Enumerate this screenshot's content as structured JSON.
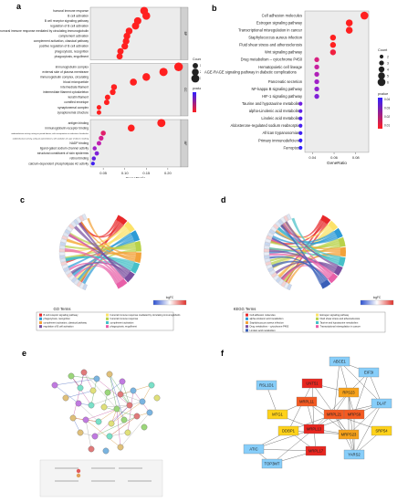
{
  "figure": {
    "panel_letters": {
      "a": "a",
      "b": "b",
      "c": "c",
      "d": "d",
      "e": "e",
      "f": "f"
    }
  },
  "chart_data": [
    {
      "panel": "a",
      "type": "scatter",
      "xlabel": "GeneRatio",
      "xticks": [
        "0.05",
        "0.10",
        "0.15",
        "0.20"
      ],
      "xlim": [
        0.02,
        0.23
      ],
      "legend": {
        "count_title": "Count",
        "count_values": [
          10,
          20,
          30
        ],
        "p_title": "pvalue"
      },
      "groups": [
        {
          "name": "BP",
          "terms": [
            {
              "label": "humoral immune response",
              "x": 0.145,
              "count": 28,
              "color": "#ff2020"
            },
            {
              "label": "B cell activation",
              "x": 0.15,
              "count": 28,
              "color": "#ff2020"
            },
            {
              "label": "B cell receptor signaling pathway",
              "x": 0.13,
              "count": 24,
              "color": "#ff2020"
            },
            {
              "label": "regulation of B cell activation",
              "x": 0.125,
              "count": 23,
              "color": "#ff2020"
            },
            {
              "label": "humoral immune response mediated by circulating immunoglobulin",
              "x": 0.11,
              "count": 20,
              "color": "#ff2020"
            },
            {
              "label": "complement activation",
              "x": 0.105,
              "count": 19,
              "color": "#ff2020"
            },
            {
              "label": "complement activation, classical pathway",
              "x": 0.103,
              "count": 18,
              "color": "#ff2020"
            },
            {
              "label": "positive regulation of B cell activation",
              "x": 0.1,
              "count": 18,
              "color": "#ff2020"
            },
            {
              "label": "phagocytosis, recognition",
              "x": 0.09,
              "count": 16,
              "color": "#ff2020"
            },
            {
              "label": "phagocytosis, engulfment",
              "x": 0.088,
              "count": 15,
              "color": "#ff2020"
            }
          ]
        },
        {
          "name": "CC",
          "terms": [
            {
              "label": "immunoglobulin complex",
              "x": 0.225,
              "count": 36,
              "color": "#ff2020"
            },
            {
              "label": "external side of plasma membrane",
              "x": 0.19,
              "count": 32,
              "color": "#ff2020"
            },
            {
              "label": "immunoglobulin complex, circulating",
              "x": 0.15,
              "count": 27,
              "color": "#ff2020"
            },
            {
              "label": "blood microparticle",
              "x": 0.12,
              "count": 21,
              "color": "#ff2020"
            },
            {
              "label": "intermediate filament",
              "x": 0.075,
              "count": 13,
              "color": "#ff2020"
            },
            {
              "label": "intermediate filament cytoskeleton",
              "x": 0.072,
              "count": 12,
              "color": "#ff2020"
            },
            {
              "label": "keratin filament",
              "x": 0.06,
              "count": 10,
              "color": "#ff2020"
            },
            {
              "label": "cornified envelope",
              "x": 0.058,
              "count": 10,
              "color": "#ff2020"
            },
            {
              "label": "synaptonemal complex",
              "x": 0.04,
              "count": 6,
              "color": "#ff2020"
            },
            {
              "label": "synaptonemal structure",
              "x": 0.04,
              "count": 6,
              "color": "#ff2020"
            }
          ]
        },
        {
          "name": "MF",
          "terms": [
            {
              "label": "antigen binding",
              "x": 0.185,
              "count": 31,
              "color": "#ff2020"
            },
            {
              "label": "immunoglobulin receptor binding",
              "x": 0.115,
              "count": 20,
              "color": "#ff2020"
            },
            {
              "label": "oxidoreductase activity, acting on paired donors, with incorporation or reduction of molecular oxygen",
              "x": 0.05,
              "count": 8,
              "color": "#e0206a"
            },
            {
              "label": "oxidoreductase activity, acting on paired donors, with oxidation of a pair of donors resulting in the reduction of molecular oxygen to two molecules of water",
              "x": 0.045,
              "count": 7,
              "color": "#d42090"
            },
            {
              "label": "NADP binding",
              "x": 0.04,
              "count": 6,
              "color": "#c020b0"
            },
            {
              "label": "ligand-gated sodium channel activity",
              "x": 0.03,
              "count": 4,
              "color": "#a020c8"
            },
            {
              "label": "structural constituent of skin epidermis",
              "x": 0.035,
              "count": 5,
              "color": "#8020d8"
            },
            {
              "label": "retinol binding",
              "x": 0.028,
              "count": 4,
              "color": "#6020e0"
            },
            {
              "label": "calcium-dependent phospholipase A2 activity",
              "x": 0.026,
              "count": 3,
              "color": "#4020f0"
            }
          ]
        }
      ]
    },
    {
      "panel": "b",
      "type": "scatter",
      "xlabel": "GeneRatio",
      "xticks": [
        "0.04",
        "0.06",
        "0.08"
      ],
      "xlim": [
        0.033,
        0.092
      ],
      "legend": {
        "count_title": "Count",
        "count_values": [
          2,
          3,
          4,
          5,
          6
        ],
        "p_title": "pvalue",
        "p_ticks": [
          "0.04",
          "0.03",
          "0.02",
          "0.01"
        ]
      },
      "terms": [
        {
          "label": "Cell adhesion molecules",
          "x": 0.088,
          "count": 6,
          "color": "#ff2020"
        },
        {
          "label": "Estrogen signaling pathway",
          "x": 0.074,
          "count": 5,
          "color": "#ff2020"
        },
        {
          "label": "Transcriptional misregulation in cancer",
          "x": 0.074,
          "count": 5,
          "color": "#ff2020"
        },
        {
          "label": "Staphylococcus aureus infection",
          "x": 0.059,
          "count": 4,
          "color": "#ff2020"
        },
        {
          "label": "Fluid shear stress and atherosclerosis",
          "x": 0.059,
          "count": 4,
          "color": "#ff2020"
        },
        {
          "label": "Wnt signaling pathway",
          "x": 0.059,
          "count": 4,
          "color": "#f02040"
        },
        {
          "label": "Drug metabolism – cytochrome P450",
          "x": 0.044,
          "count": 3,
          "color": "#d82080"
        },
        {
          "label": "Hematopoietic cell lineage",
          "x": 0.044,
          "count": 3,
          "color": "#c820a0"
        },
        {
          "label": "AGE-RAGE signaling pathway in diabetic complications",
          "x": 0.044,
          "count": 3,
          "color": "#b020b8"
        },
        {
          "label": "Pancreatic secretion",
          "x": 0.044,
          "count": 3,
          "color": "#a020c8"
        },
        {
          "label": "NF-kappa B signaling pathway",
          "x": 0.044,
          "count": 3,
          "color": "#9020d0"
        },
        {
          "label": "HIF-1 signaling pathway",
          "x": 0.044,
          "count": 3,
          "color": "#8020d8"
        },
        {
          "label": "Taurine and hypotaurine metabolism",
          "x": 0.029,
          "count": 2,
          "color": "#7020e0"
        },
        {
          "label": "alpha-Linolenic acid metabolism",
          "x": 0.029,
          "count": 2,
          "color": "#6020e8"
        },
        {
          "label": "Linoleic acid metabolism",
          "x": 0.029,
          "count": 2,
          "color": "#5020ec"
        },
        {
          "label": "Aldosterone-regulated sodium reabsorption",
          "x": 0.029,
          "count": 2,
          "color": "#4820f0"
        },
        {
          "label": "African trypanosomiasis",
          "x": 0.029,
          "count": 2,
          "color": "#4020f4"
        },
        {
          "label": "Primary immunodeficiency",
          "x": 0.029,
          "count": 2,
          "color": "#3820f8"
        },
        {
          "label": "Ferroptosis",
          "x": 0.029,
          "count": 2,
          "color": "#3020fc"
        }
      ]
    }
  ],
  "chord_c": {
    "footer": "GO Terms",
    "legend_scale_title": "logFC",
    "terms": [
      {
        "label": "B cell receptor signaling pathway",
        "color": "#e8282a"
      },
      {
        "label": "humoral immune response mediated by circulating immunoglobulin",
        "color": "#fce26a"
      },
      {
        "label": "phagocytosis, recognition",
        "color": "#2e9bd6"
      },
      {
        "label": "humoral immune response",
        "color": "#b8d24a"
      },
      {
        "label": "complement activation, classical pathway",
        "color": "#f2a23a"
      },
      {
        "label": "complement activation",
        "color": "#46c0c8"
      },
      {
        "label": "regulation of B cell activation",
        "color": "#7a4fa0"
      },
      {
        "label": "phagocytosis, engulfment",
        "color": "#e85fa8"
      }
    ]
  },
  "chord_d": {
    "footer": "KEGG Terms",
    "legend_scale_title": "logFC",
    "terms": [
      {
        "label": "Cell adhesion molecules",
        "color": "#e8282a"
      },
      {
        "label": "Estrogen signaling pathway",
        "color": "#fce26a"
      },
      {
        "label": "alpha-Linolenic acid metabolism",
        "color": "#2e9bd6"
      },
      {
        "label": "Fluid shear stress and atherosclerosis",
        "color": "#b8d24a"
      },
      {
        "label": "Staphylococcus aureus infection",
        "color": "#f2a23a"
      },
      {
        "label": "Taurine and hypotaurine metabolism",
        "color": "#46c0c8"
      },
      {
        "label": "Drug metabolism – cytochrome P450",
        "color": "#7a4fa0"
      },
      {
        "label": "Transcriptional misregulation in cancer",
        "color": "#e85fa8"
      },
      {
        "label": "Linoleic acid metabolism",
        "color": "#3a5fb8"
      }
    ]
  },
  "network_f": {
    "nodes": [
      {
        "id": "ABCE1",
        "color": "#87cefa"
      },
      {
        "id": "EIF3I",
        "color": "#87cefa"
      },
      {
        "id": "RSL1D1",
        "color": "#87cefa"
      },
      {
        "id": "UNT51",
        "color": "#e8261f"
      },
      {
        "id": "MRPL11",
        "color": "#f45a22"
      },
      {
        "id": "RPS23",
        "color": "#f7a21b"
      },
      {
        "id": "DLAT",
        "color": "#87cefa"
      },
      {
        "id": "MTG1",
        "color": "#ffd21a"
      },
      {
        "id": "MRPL21",
        "color": "#f45a22"
      },
      {
        "id": "MRPS9",
        "color": "#f45a22"
      },
      {
        "id": "DDBP1",
        "color": "#ffd21a"
      },
      {
        "id": "MRPL13",
        "color": "#e8261f"
      },
      {
        "id": "MRPS23",
        "color": "#f7a21b"
      },
      {
        "id": "SRP54",
        "color": "#ffd21a"
      },
      {
        "id": "ATIC",
        "color": "#87cefa"
      },
      {
        "id": "MRPL17",
        "color": "#e8261f"
      },
      {
        "id": "YARS2",
        "color": "#87cefa"
      },
      {
        "id": "TOP3MT",
        "color": "#87cefa"
      }
    ]
  }
}
